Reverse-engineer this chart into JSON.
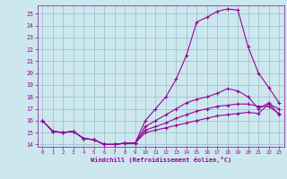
{
  "bg_color": "#cce8ee",
  "line_color": "#990099",
  "grid_color": "#99bbcc",
  "xlabel": "Windchill (Refroidissement éolien,°C)",
  "xlim": [
    -0.5,
    23.5
  ],
  "ylim": [
    13.8,
    25.7
  ],
  "yticks": [
    14,
    15,
    16,
    17,
    18,
    19,
    20,
    21,
    22,
    23,
    24,
    25
  ],
  "xticks": [
    0,
    1,
    2,
    3,
    4,
    5,
    6,
    7,
    8,
    9,
    10,
    11,
    12,
    13,
    14,
    15,
    16,
    17,
    18,
    19,
    20,
    21,
    22,
    23
  ],
  "series": [
    [
      16.0,
      15.1,
      15.0,
      15.1,
      14.5,
      14.4,
      14.0,
      14.0,
      14.1,
      14.1,
      16.0,
      17.0,
      18.0,
      19.5,
      21.5,
      24.3,
      24.7,
      25.2,
      25.4,
      25.3,
      22.2,
      20.0,
      18.8,
      17.5
    ],
    [
      16.0,
      15.1,
      15.0,
      15.1,
      14.5,
      14.4,
      14.0,
      14.0,
      14.1,
      14.1,
      15.5,
      16.0,
      16.5,
      17.0,
      17.5,
      17.8,
      18.0,
      18.3,
      18.7,
      18.5,
      18.0,
      17.0,
      17.5,
      16.5
    ],
    [
      16.0,
      15.1,
      15.0,
      15.1,
      14.5,
      14.4,
      14.0,
      14.0,
      14.1,
      14.1,
      15.2,
      15.5,
      15.8,
      16.2,
      16.5,
      16.8,
      17.0,
      17.2,
      17.3,
      17.4,
      17.4,
      17.2,
      17.2,
      16.6
    ],
    [
      16.0,
      15.1,
      15.0,
      15.1,
      14.5,
      14.4,
      14.0,
      14.0,
      14.1,
      14.1,
      15.0,
      15.2,
      15.4,
      15.6,
      15.8,
      16.0,
      16.2,
      16.4,
      16.5,
      16.6,
      16.7,
      16.6,
      17.4,
      17.0
    ]
  ]
}
